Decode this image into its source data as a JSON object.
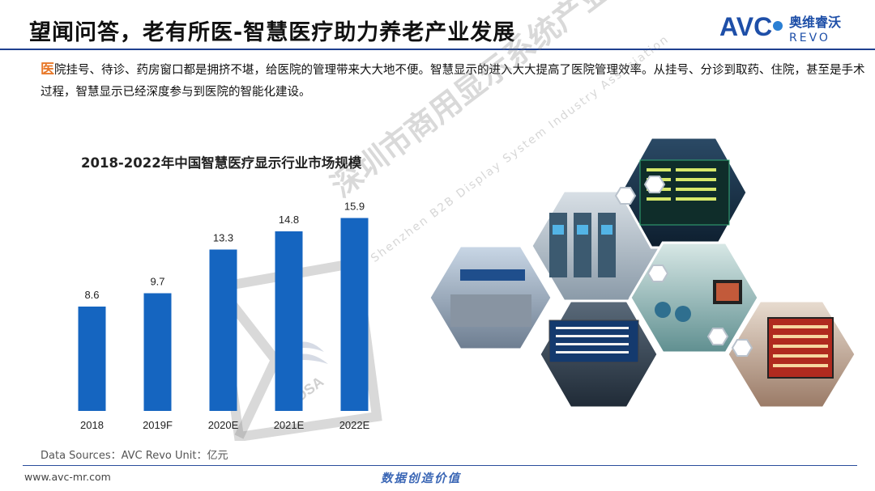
{
  "header": {
    "title": "望闻问答，老有所医-智慧医疗助力养老产业发展",
    "logo_text": "AVC",
    "logo_subtext_cn": "奥维睿沃",
    "logo_subtext_en": "REVO"
  },
  "intro": {
    "first_char": "医",
    "text": "院挂号、待诊、药房窗口都是拥挤不堪，给医院的管理带来大大地不便。智慧显示的进入大大提高了医院管理效率。从挂号、分诊到取药、住院，甚至是手术过程，智慧显示已经深度参与到医院的智能化建设。"
  },
  "chart_data": {
    "type": "bar",
    "title": "2018-2022年中国智慧医疗显示行业市场规模",
    "categories": [
      "2018",
      "2019F",
      "2020E",
      "2021E",
      "2022E"
    ],
    "values": [
      8.6,
      9.7,
      13.3,
      14.8,
      15.9
    ],
    "data_labels": [
      "8.6",
      "9.7",
      "13.3",
      "14.8",
      "15.9"
    ],
    "bar_color": "#1565c0",
    "ylim": [
      0,
      18
    ],
    "grid": false,
    "legend": "none"
  },
  "source_note": "Data Sources：AVC Revo   Unit：亿元",
  "watermark": {
    "text_cn": "深圳市商用显示系统产业促进会",
    "text_en": "Shenzhen B2B Display System Industry Association",
    "badge": "BDSA"
  },
  "footer": {
    "url": "www.avc-mr.com",
    "slogan": "数据创造价值"
  },
  "colors": {
    "accent": "#1e3f8f",
    "intro_first": "#e8792a",
    "slogan": "#3a66b5"
  }
}
